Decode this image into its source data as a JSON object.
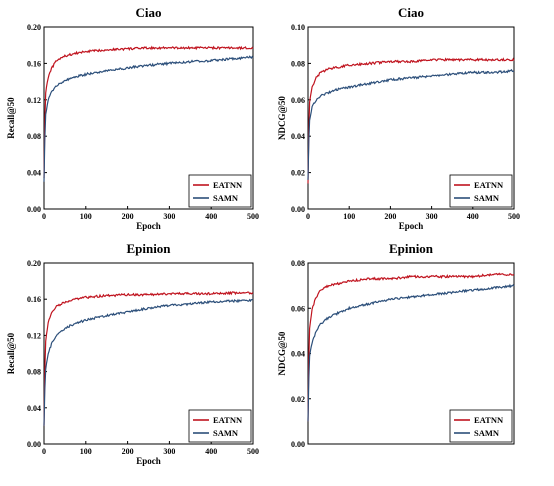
{
  "chart_data": [
    {
      "type": "line",
      "title": "Ciao",
      "xlabel": "Epoch",
      "ylabel": "Recall@50",
      "xlim": [
        0,
        500
      ],
      "ylim": [
        0,
        0.2
      ],
      "xticks": [
        "0",
        "100",
        "200",
        "300",
        "400",
        "500"
      ],
      "yticks": [
        "0.00",
        "0.04",
        "0.08",
        "0.12",
        "0.16",
        "0.20"
      ],
      "grid": false,
      "legend": "bottom-right",
      "colors": {
        "EATNN": "#c0141f",
        "SAMN": "#2c4f7a"
      },
      "series": [
        {
          "name": "EATNN",
          "x": [
            0,
            3,
            10,
            20,
            30,
            50,
            75,
            100,
            150,
            200,
            250,
            300,
            350,
            400,
            450,
            500
          ],
          "values": [
            0.034,
            0.125,
            0.145,
            0.156,
            0.163,
            0.168,
            0.171,
            0.173,
            0.175,
            0.176,
            0.177,
            0.177,
            0.177,
            0.177,
            0.177,
            0.177
          ]
        },
        {
          "name": "SAMN",
          "x": [
            0,
            3,
            10,
            20,
            30,
            50,
            75,
            100,
            150,
            200,
            250,
            300,
            350,
            400,
            450,
            500
          ],
          "values": [
            0.03,
            0.1,
            0.12,
            0.13,
            0.136,
            0.141,
            0.145,
            0.148,
            0.152,
            0.155,
            0.158,
            0.16,
            0.162,
            0.163,
            0.165,
            0.167
          ]
        }
      ]
    },
    {
      "type": "line",
      "title": "Ciao",
      "xlabel": "Epoch",
      "ylabel": "NDCG@50",
      "xlim": [
        0,
        500
      ],
      "ylim": [
        0,
        0.1
      ],
      "xticks": [
        "0",
        "100",
        "200",
        "300",
        "400",
        "500"
      ],
      "yticks": [
        "0.00",
        "0.02",
        "0.04",
        "0.06",
        "0.08",
        "0.10"
      ],
      "grid": false,
      "legend": "bottom-right",
      "colors": {
        "EATNN": "#c0141f",
        "SAMN": "#2c4f7a"
      },
      "series": [
        {
          "name": "EATNN",
          "x": [
            0,
            3,
            10,
            20,
            30,
            50,
            75,
            100,
            150,
            200,
            250,
            300,
            350,
            400,
            450,
            500
          ],
          "values": [
            0.014,
            0.058,
            0.067,
            0.072,
            0.075,
            0.077,
            0.078,
            0.079,
            0.08,
            0.081,
            0.081,
            0.082,
            0.082,
            0.082,
            0.082,
            0.082
          ]
        },
        {
          "name": "SAMN",
          "x": [
            0,
            3,
            10,
            20,
            30,
            50,
            75,
            100,
            150,
            200,
            250,
            300,
            350,
            400,
            450,
            500
          ],
          "values": [
            0.016,
            0.048,
            0.056,
            0.06,
            0.062,
            0.064,
            0.066,
            0.067,
            0.069,
            0.071,
            0.072,
            0.073,
            0.074,
            0.075,
            0.075,
            0.076
          ]
        }
      ]
    },
    {
      "type": "line",
      "title": "Epinion",
      "xlabel": "Epoch",
      "ylabel": "Recall@50",
      "xlim": [
        0,
        500
      ],
      "ylim": [
        0,
        0.2
      ],
      "xticks": [
        "0",
        "100",
        "200",
        "300",
        "400",
        "500"
      ],
      "yticks": [
        "0.00",
        "0.04",
        "0.08",
        "0.12",
        "0.16",
        "0.20"
      ],
      "grid": false,
      "legend": "bottom-right",
      "colors": {
        "EATNN": "#c0141f",
        "SAMN": "#2c4f7a"
      },
      "series": [
        {
          "name": "EATNN",
          "x": [
            0,
            3,
            10,
            20,
            30,
            50,
            75,
            100,
            150,
            200,
            250,
            300,
            350,
            400,
            450,
            500
          ],
          "values": [
            0.02,
            0.11,
            0.135,
            0.146,
            0.152,
            0.157,
            0.16,
            0.162,
            0.164,
            0.165,
            0.165,
            0.166,
            0.166,
            0.166,
            0.167,
            0.167
          ]
        },
        {
          "name": "SAMN",
          "x": [
            0,
            3,
            10,
            20,
            30,
            50,
            75,
            100,
            150,
            200,
            250,
            300,
            350,
            400,
            450,
            500
          ],
          "values": [
            0.02,
            0.08,
            0.1,
            0.113,
            0.12,
            0.128,
            0.133,
            0.137,
            0.142,
            0.146,
            0.15,
            0.153,
            0.155,
            0.157,
            0.158,
            0.159
          ]
        }
      ]
    },
    {
      "type": "line",
      "title": "Epinion",
      "xlabel": "",
      "ylabel": "NDCG@50",
      "xlim": [
        0,
        500
      ],
      "ylim": [
        0,
        0.08
      ],
      "xticks": [],
      "yticks": [
        "0.00",
        "0.02",
        "0.04",
        "0.06",
        "0.08"
      ],
      "grid": false,
      "legend": "bottom-right",
      "colors": {
        "EATNN": "#c0141f",
        "SAMN": "#2c4f7a"
      },
      "series": [
        {
          "name": "EATNN",
          "x": [
            0,
            3,
            10,
            20,
            30,
            50,
            75,
            100,
            150,
            200,
            250,
            300,
            350,
            400,
            450,
            500
          ],
          "values": [
            0.01,
            0.05,
            0.06,
            0.065,
            0.068,
            0.07,
            0.071,
            0.072,
            0.073,
            0.073,
            0.074,
            0.074,
            0.074,
            0.074,
            0.075,
            0.075
          ]
        },
        {
          "name": "SAMN",
          "x": [
            0,
            3,
            10,
            20,
            30,
            50,
            75,
            100,
            150,
            200,
            250,
            300,
            350,
            400,
            450,
            500
          ],
          "values": [
            0.01,
            0.038,
            0.045,
            0.05,
            0.053,
            0.056,
            0.058,
            0.06,
            0.062,
            0.064,
            0.065,
            0.066,
            0.067,
            0.068,
            0.069,
            0.07
          ]
        }
      ]
    }
  ]
}
